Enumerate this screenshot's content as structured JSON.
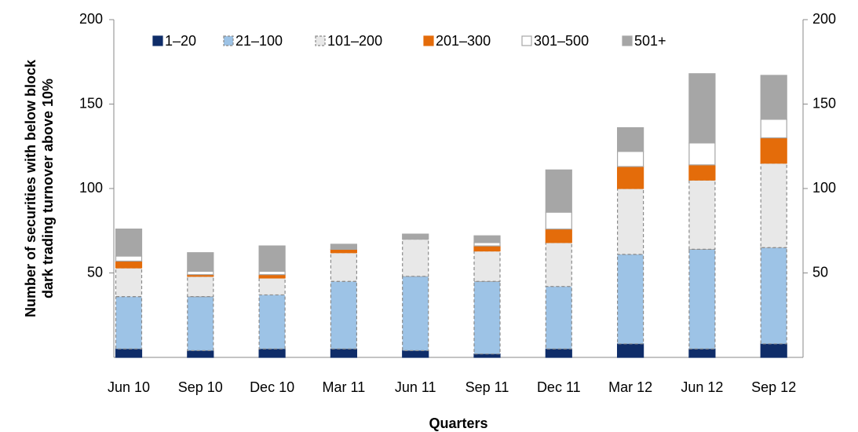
{
  "chart_data": {
    "type": "stacked_bar",
    "ylabel": [
      "Number of securities with below block",
      "dark trading turnover above 10%"
    ],
    "xlabel": "Quarters",
    "categories": [
      "Jun 10",
      "Sep 10",
      "Dec 10",
      "Mar 11",
      "Jun 11",
      "Sep 11",
      "Dec 11",
      "Mar 12",
      "Jun 12",
      "Sep 12"
    ],
    "series": [
      {
        "name": "1–20",
        "color": "#0f2d69",
        "edgecolor": "#0f2d69",
        "dashed": false,
        "values": [
          5,
          4,
          5,
          5,
          4,
          2,
          5,
          8,
          5,
          8
        ]
      },
      {
        "name": "21–100",
        "color": "#9dc3e6",
        "edgecolor": "#8a8a8a",
        "dashed": true,
        "values": [
          31,
          32,
          32,
          40,
          44,
          43,
          37,
          53,
          59,
          57
        ]
      },
      {
        "name": "101–200",
        "color": "#e8e8e8",
        "edgecolor": "#8a8a8a",
        "dashed": true,
        "values": [
          17,
          12,
          10,
          17,
          22,
          18,
          26,
          39,
          41,
          50
        ]
      },
      {
        "name": "201–300",
        "color": "#e46c0a",
        "edgecolor": "#e46c0a",
        "dashed": false,
        "values": [
          4,
          1,
          2,
          2,
          0,
          3,
          8,
          13,
          9,
          15
        ]
      },
      {
        "name": "301–500",
        "color": "#ffffff",
        "edgecolor": "#a6a6a6",
        "dashed": false,
        "values": [
          3,
          2,
          2,
          0,
          0,
          2,
          10,
          9,
          13,
          11
        ]
      },
      {
        "name": "501+",
        "color": "#a6a6a6",
        "edgecolor": "#a6a6a6",
        "dashed": false,
        "values": [
          16,
          11,
          15,
          3,
          3,
          4,
          25,
          14,
          41,
          26
        ]
      }
    ],
    "ylim": [
      0,
      200
    ],
    "yticks": [
      50,
      100,
      150,
      200
    ],
    "y2lim": [
      0,
      200
    ],
    "y2ticks": [
      50,
      100,
      150,
      200
    ],
    "legend": "top"
  }
}
